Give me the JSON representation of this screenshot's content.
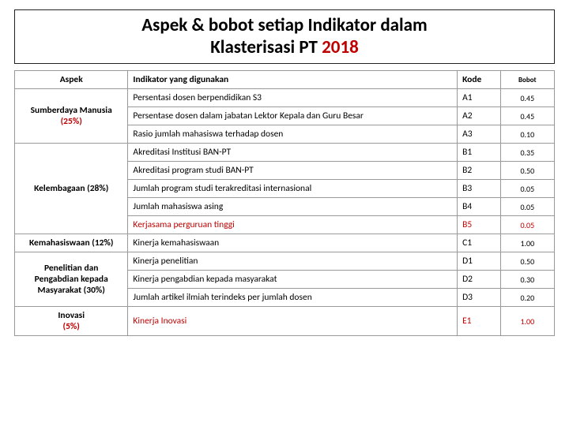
{
  "title_parts": {
    "a": "Aspek & bobot setiap Indikator dalam",
    "b": "Klasterisasi PT ",
    "year": "2018"
  },
  "colors": {
    "year": "#c00000",
    "text": "#000000",
    "red_row": "#c00000"
  },
  "headers": {
    "aspek": "Aspek",
    "indikator": "Indikator yang digunakan",
    "kode": "Kode",
    "bobot": "Bobot"
  },
  "aspects": [
    {
      "label_lines": [
        "Sumberdaya Manusia"
      ],
      "pct": "(25%)",
      "aspect_color": "#000000",
      "pct_color": "#c00000",
      "rows": [
        {
          "indikator": "Persentasi dosen berpendidikan S3",
          "kode": "A1",
          "bobot": "0.45",
          "color": "#000000"
        },
        {
          "indikator": "Persentase dosen dalam jabatan Lektor Kepala dan Guru Besar",
          "kode": "A2",
          "bobot": "0.45",
          "color": "#000000"
        },
        {
          "indikator": "Rasio jumlah mahasiswa terhadap dosen",
          "kode": "A3",
          "bobot": "0.10",
          "color": "#000000"
        }
      ]
    },
    {
      "label_lines": [
        "Kelembagaan (28%)"
      ],
      "pct": "",
      "aspect_color": "#000000",
      "pct_color": "#000000",
      "rows": [
        {
          "indikator": "Akreditasi Institusi BAN-PT",
          "kode": "B1",
          "bobot": "0.35",
          "color": "#000000"
        },
        {
          "indikator": "Akreditasi program studi BAN-PT",
          "kode": "B2",
          "bobot": "0.50",
          "color": "#000000"
        },
        {
          "indikator": "Jumlah program studi terakreditasi internasional",
          "kode": "B3",
          "bobot": "0.05",
          "color": "#000000"
        },
        {
          "indikator": "Jumlah mahasiswa asing",
          "kode": "B4",
          "bobot": "0.05",
          "color": "#000000"
        },
        {
          "indikator": "Kerjasama perguruan tinggi",
          "kode": "B5",
          "bobot": "0.05",
          "color": "#c00000"
        }
      ]
    },
    {
      "label_lines": [
        "Kemahasiswaan (12%)"
      ],
      "pct": "",
      "aspect_color": "#000000",
      "pct_color": "#000000",
      "rows": [
        {
          "indikator": "Kinerja kemahasiswaan",
          "kode": "C1",
          "bobot": "1.00",
          "color": "#000000"
        }
      ]
    },
    {
      "label_lines": [
        "Penelitian dan",
        "Pengabdian kepada",
        "Masyarakat (30%)"
      ],
      "pct": "",
      "aspect_color": "#000000",
      "pct_color": "#000000",
      "rows": [
        {
          "indikator": "Kinerja penelitian",
          "kode": "D1",
          "bobot": "0.50",
          "color": "#000000"
        },
        {
          "indikator": "Kinerja pengabdian kepada masyarakat",
          "kode": "D2",
          "bobot": "0.30",
          "color": "#000000"
        },
        {
          "indikator": "Jumlah artikel ilmiah terindeks per jumlah dosen",
          "kode": "D3",
          "bobot": "0.20",
          "color": "#000000"
        }
      ]
    },
    {
      "label_lines": [
        "Inovasi "
      ],
      "pct": "(5%)",
      "aspect_color": "#000000",
      "pct_color": "#c00000",
      "rows": [
        {
          "indikator": "Kinerja Inovasi",
          "kode": "E1",
          "bobot": "1.00",
          "color": "#c00000"
        }
      ]
    }
  ]
}
